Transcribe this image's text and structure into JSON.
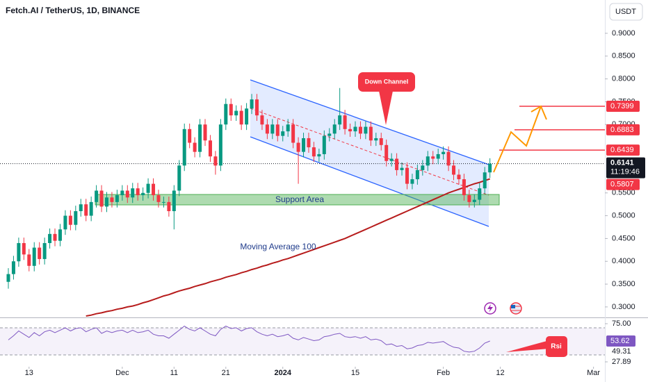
{
  "chart_data": {
    "type": "candlestick",
    "title": "Fetch.AI / TetherUS, 1D, BINANCE",
    "currency": "USDT",
    "open": [
      0.355,
      0.372,
      0.4,
      0.44,
      0.415,
      0.39,
      0.43,
      0.405,
      0.44,
      0.46,
      0.445,
      0.47,
      0.5,
      0.48,
      0.51,
      0.525,
      0.5,
      0.53,
      0.555,
      0.52,
      0.54,
      0.53,
      0.545,
      0.555,
      0.54,
      0.56,
      0.545,
      0.55,
      0.57,
      0.545,
      0.53,
      0.53,
      0.51,
      0.555,
      0.61,
      0.69,
      0.66,
      0.64,
      0.7,
      0.665,
      0.63,
      0.61,
      0.7,
      0.745,
      0.72,
      0.73,
      0.7,
      0.735,
      0.755,
      0.72,
      0.7,
      0.68,
      0.7,
      0.675,
      0.685,
      0.7,
      0.66,
      0.64,
      0.67,
      0.65,
      0.63,
      0.635,
      0.675,
      0.68,
      0.7,
      0.72,
      0.69,
      0.685,
      0.695,
      0.68,
      0.695,
      0.665,
      0.67,
      0.655,
      0.62,
      0.625,
      0.6,
      0.605,
      0.57,
      0.58,
      0.6,
      0.61,
      0.63,
      0.625,
      0.635,
      0.64,
      0.61,
      0.59,
      0.58,
      0.545,
      0.53,
      0.535,
      0.56,
      0.595
    ],
    "high": [
      0.385,
      0.412,
      0.452,
      0.452,
      0.427,
      0.442,
      0.442,
      0.452,
      0.472,
      0.472,
      0.482,
      0.512,
      0.512,
      0.522,
      0.537,
      0.537,
      0.542,
      0.567,
      0.567,
      0.552,
      0.552,
      0.557,
      0.567,
      0.567,
      0.572,
      0.572,
      0.562,
      0.582,
      0.582,
      0.557,
      0.542,
      0.542,
      0.567,
      0.622,
      0.702,
      0.702,
      0.672,
      0.712,
      0.712,
      0.677,
      0.642,
      0.712,
      0.757,
      0.757,
      0.742,
      0.742,
      0.747,
      0.767,
      0.767,
      0.732,
      0.712,
      0.712,
      0.712,
      0.697,
      0.712,
      0.712,
      0.672,
      0.682,
      0.682,
      0.662,
      0.647,
      0.687,
      0.692,
      0.712,
      0.78,
      0.732,
      0.702,
      0.707,
      0.707,
      0.707,
      0.707,
      0.682,
      0.682,
      0.667,
      0.637,
      0.637,
      0.617,
      0.617,
      0.592,
      0.612,
      0.622,
      0.642,
      0.642,
      0.647,
      0.652,
      0.652,
      0.622,
      0.602,
      0.592,
      0.557,
      0.547,
      0.572,
      0.607,
      0.626
    ],
    "low": [
      0.34,
      0.36,
      0.388,
      0.403,
      0.378,
      0.378,
      0.393,
      0.393,
      0.428,
      0.433,
      0.433,
      0.458,
      0.468,
      0.468,
      0.498,
      0.488,
      0.488,
      0.518,
      0.508,
      0.508,
      0.518,
      0.518,
      0.533,
      0.528,
      0.528,
      0.533,
      0.533,
      0.538,
      0.533,
      0.518,
      0.518,
      0.498,
      0.47,
      0.543,
      0.598,
      0.648,
      0.628,
      0.628,
      0.653,
      0.618,
      0.59,
      0.598,
      0.688,
      0.708,
      0.708,
      0.688,
      0.688,
      0.723,
      0.708,
      0.688,
      0.668,
      0.668,
      0.663,
      0.663,
      0.673,
      0.648,
      0.57,
      0.628,
      0.638,
      0.618,
      0.618,
      0.623,
      0.663,
      0.668,
      0.688,
      0.678,
      0.673,
      0.673,
      0.668,
      0.668,
      0.653,
      0.653,
      0.643,
      0.608,
      0.608,
      0.588,
      0.588,
      0.558,
      0.558,
      0.568,
      0.588,
      0.598,
      0.613,
      0.613,
      0.623,
      0.598,
      0.578,
      0.568,
      0.533,
      0.518,
      0.518,
      0.523,
      0.548,
      0.583
    ],
    "close": [
      0.372,
      0.4,
      0.44,
      0.415,
      0.39,
      0.43,
      0.405,
      0.44,
      0.46,
      0.445,
      0.47,
      0.5,
      0.48,
      0.51,
      0.525,
      0.5,
      0.53,
      0.555,
      0.52,
      0.54,
      0.53,
      0.545,
      0.555,
      0.54,
      0.56,
      0.545,
      0.55,
      0.57,
      0.545,
      0.53,
      0.53,
      0.51,
      0.555,
      0.61,
      0.69,
      0.66,
      0.64,
      0.7,
      0.665,
      0.63,
      0.61,
      0.7,
      0.745,
      0.72,
      0.73,
      0.7,
      0.735,
      0.755,
      0.72,
      0.7,
      0.68,
      0.7,
      0.675,
      0.685,
      0.7,
      0.66,
      0.64,
      0.67,
      0.65,
      0.63,
      0.635,
      0.675,
      0.68,
      0.7,
      0.72,
      0.69,
      0.685,
      0.695,
      0.68,
      0.695,
      0.665,
      0.67,
      0.655,
      0.62,
      0.625,
      0.6,
      0.605,
      0.57,
      0.58,
      0.6,
      0.61,
      0.63,
      0.625,
      0.635,
      0.64,
      0.61,
      0.59,
      0.58,
      0.545,
      0.53,
      0.535,
      0.56,
      0.595,
      0.6141
    ],
    "up_color": "#089981",
    "down_color": "#f23645",
    "xlim": [
      -1.61,
      115.2
    ],
    "xticks": [
      {
        "value": 4,
        "label": "13"
      },
      {
        "value": 22,
        "label": "Dec"
      },
      {
        "value": 32,
        "label": "11"
      },
      {
        "value": 42,
        "label": "21"
      },
      {
        "value": 53,
        "label": "2024"
      },
      {
        "value": 67,
        "label": "15"
      },
      {
        "value": 84,
        "label": "Feb"
      },
      {
        "value": 95,
        "label": "12"
      },
      {
        "value": 113,
        "label": "Mar"
      }
    ],
    "ylim": [
      0.277,
      0.973
    ],
    "yticks": [
      {
        "value": 0.9,
        "label": "0.9000"
      },
      {
        "value": 0.85,
        "label": "0.8500"
      },
      {
        "value": 0.8,
        "label": "0.8000"
      },
      {
        "value": 0.75,
        "label": "0.7500"
      },
      {
        "value": 0.7,
        "label": "0.7000"
      },
      {
        "value": 0.55,
        "label": "0.5500"
      },
      {
        "value": 0.5,
        "label": "0.5000"
      },
      {
        "value": 0.45,
        "label": "0.4500"
      },
      {
        "value": 0.4,
        "label": "0.4000"
      },
      {
        "value": 0.35,
        "label": "0.3500"
      },
      {
        "value": 0.3,
        "label": "0.3000"
      }
    ],
    "ma": {
      "name": "Moving Average 100",
      "color": "#b71c1c",
      "values": [
        null,
        null,
        null,
        null,
        null,
        null,
        null,
        null,
        null,
        null,
        null,
        null,
        null,
        null,
        null,
        0.28,
        0.282,
        0.285,
        0.287,
        0.29,
        0.292,
        0.295,
        0.297,
        0.3,
        0.302,
        0.305,
        0.309,
        0.312,
        0.316,
        0.32,
        0.324,
        0.327,
        0.331,
        0.335,
        0.338,
        0.341,
        0.345,
        0.348,
        0.351,
        0.355,
        0.358,
        0.361,
        0.365,
        0.368,
        0.371,
        0.375,
        0.378,
        0.382,
        0.385,
        0.389,
        0.392,
        0.396,
        0.399,
        0.403,
        0.406,
        0.41,
        0.414,
        0.418,
        0.422,
        0.426,
        0.43,
        0.434,
        0.438,
        0.442,
        0.446,
        0.45,
        0.455,
        0.46,
        0.465,
        0.47,
        0.475,
        0.48,
        0.485,
        0.49,
        0.495,
        0.5,
        0.505,
        0.51,
        0.515,
        0.52,
        0.525,
        0.53,
        0.535,
        0.54,
        0.545,
        0.55,
        0.554,
        0.558,
        0.562,
        0.566,
        0.57,
        0.573,
        0.577,
        0.5807
      ]
    },
    "levels": [
      0.7399,
      0.6883,
      0.6439
    ],
    "level_color": "#f23645",
    "countdown": "11:19:46",
    "annotations": {
      "support": "Support Area",
      "channel": "Down Channel",
      "rsi": "Rsi"
    },
    "rsi": {
      "color": "#7e57c2",
      "values": [
        55,
        60,
        66,
        62,
        58,
        64,
        60,
        65,
        67,
        64,
        67,
        70,
        66,
        69,
        70,
        65,
        68,
        70,
        63,
        66,
        64,
        66,
        67,
        64,
        67,
        64,
        65,
        67,
        62,
        60,
        60,
        57,
        62,
        67,
        72,
        68,
        66,
        70,
        66,
        62,
        60,
        68,
        72,
        69,
        70,
        66,
        69,
        70,
        65,
        62,
        60,
        62,
        59,
        60,
        62,
        57,
        55,
        58,
        56,
        54,
        55,
        59,
        60,
        62,
        63,
        59,
        58,
        59,
        57,
        59,
        55,
        56,
        54,
        49,
        50,
        47,
        48,
        44,
        45,
        48,
        49,
        52,
        51,
        52,
        53,
        49,
        46,
        45,
        41,
        40,
        41,
        45,
        51,
        53.62
      ],
      "ylim": [
        11.6,
        81.9
      ],
      "yticks": [
        {
          "value": 75,
          "label": "75.00"
        },
        {
          "value": 27.89,
          "label": "27.89"
        }
      ],
      "ma_last": 49.31
    }
  }
}
